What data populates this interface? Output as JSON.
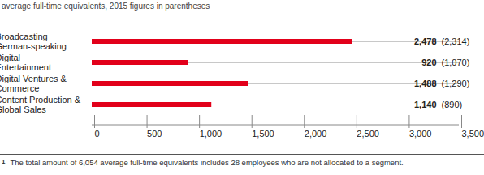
{
  "chart_data": {
    "type": "bar",
    "orientation": "horizontal",
    "subtitle": "average full-time equivalents, 2015 figures in parentheses",
    "categories": [
      "Broadcasting\nGerman-speaking",
      "Digital\nEntertainment",
      "Digital Ventures &\nCommerce",
      "Content Production &\nGlobal Sales"
    ],
    "values": [
      2478,
      920,
      1488,
      1140
    ],
    "value_labels": [
      "2,478",
      "920",
      "1,488",
      "1,140"
    ],
    "values_2015": [
      2314,
      1070,
      1290,
      890
    ],
    "value_labels_2015": [
      "(2,314)",
      "(1,070)",
      "(1,290)",
      "(890)"
    ],
    "data_labels": true,
    "color": "#e2001a",
    "xlim": [
      0,
      3500
    ],
    "xticks": [
      0,
      500,
      {
        "value": 1000,
        "label": "1,000"
      },
      {
        "value": 1500,
        "label": "1,500"
      },
      {
        "value": 2000,
        "label": "2,000"
      },
      {
        "value": 2500,
        "label": "2,500"
      },
      {
        "value": 3000,
        "label": "3,000"
      },
      {
        "value": 3500,
        "label": "3,500"
      }
    ],
    "grid": false,
    "footnote_marker": "1",
    "footnote": "The total amount of 6,054 average full-time equivalents includes 28 employees who are not allocated to a segment."
  }
}
